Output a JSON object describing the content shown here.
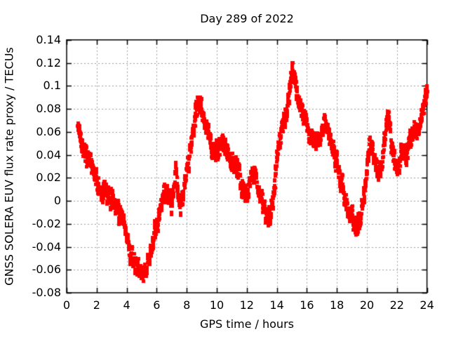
{
  "chart_data": {
    "type": "scatter",
    "title": "Day 289 of 2022",
    "xlabel": "GPS time / hours",
    "ylabel": "GNSS SOLERA EUV flux rate proxy / TECUs",
    "xlim": [
      0,
      24
    ],
    "ylim": [
      -0.08,
      0.14
    ],
    "xticks": [
      0,
      2,
      4,
      6,
      8,
      10,
      12,
      14,
      16,
      18,
      20,
      22,
      24
    ],
    "xtick_labels": [
      "0",
      "2",
      "4",
      "6",
      "8",
      "10",
      "12",
      "14",
      "16",
      "18",
      "20",
      "22",
      "24"
    ],
    "yticks": [
      0.14,
      0.12,
      0.1,
      0.08,
      0.06,
      0.04,
      0.02,
      0,
      -0.02,
      -0.04,
      -0.06,
      -0.08
    ],
    "ytick_labels": [
      "0.14",
      "0.12",
      "0.1",
      "0.08",
      "0.06",
      "0.04",
      "0.02",
      "0",
      "-0.02",
      "-0.04",
      "-0.06",
      "-0.08"
    ],
    "grid": true,
    "legend": "none",
    "marker": "filled-square",
    "marker_size_px": 5,
    "point_color": "#ff0000",
    "grid_color": "#9b9b9b",
    "axis_color": "#000000",
    "background_color": "#ffffff",
    "scatter_band_halfwidth": 0.009,
    "sample_step_hours": 0.01,
    "series": {
      "x_start": 0.72,
      "x_end": 24.0,
      "keypoints_x": [
        0.72,
        0.85,
        1.0,
        1.15,
        1.3,
        1.5,
        1.7,
        1.9,
        2.05,
        2.3,
        2.45,
        2.6,
        2.8,
        3.0,
        3.2,
        3.4,
        3.6,
        3.8,
        4.0,
        4.2,
        4.4,
        4.6,
        4.8,
        5.0,
        5.15,
        5.3,
        5.5,
        5.7,
        5.9,
        6.1,
        6.3,
        6.5,
        6.65,
        6.8,
        6.95,
        7.1,
        7.25,
        7.4,
        7.55,
        7.7,
        7.85,
        8.0,
        8.2,
        8.4,
        8.6,
        8.75,
        8.9,
        9.1,
        9.3,
        9.5,
        9.7,
        9.9,
        10.1,
        10.35,
        10.6,
        10.8,
        11.0,
        11.2,
        11.4,
        11.6,
        11.8,
        11.95,
        12.1,
        12.35,
        12.55,
        12.75,
        12.95,
        13.15,
        13.4,
        13.6,
        13.8,
        14.0,
        14.2,
        14.4,
        14.6,
        14.75,
        14.9,
        15.05,
        15.2,
        15.35,
        15.55,
        15.75,
        15.95,
        16.15,
        16.4,
        16.6,
        16.8,
        17.0,
        17.15,
        17.35,
        17.55,
        17.75,
        17.95,
        18.15,
        18.35,
        18.55,
        18.75,
        18.95,
        19.15,
        19.3,
        19.5,
        19.7,
        19.85,
        20.0,
        20.2,
        20.35,
        20.55,
        20.7,
        20.9,
        21.1,
        21.3,
        21.45,
        21.6,
        21.8,
        22.0,
        22.2,
        22.4,
        22.6,
        22.8,
        23.0,
        23.2,
        23.4,
        23.6,
        23.75,
        23.9,
        24.0
      ],
      "keypoints_y": [
        0.064,
        0.06,
        0.052,
        0.046,
        0.04,
        0.034,
        0.028,
        0.022,
        0.016,
        0.006,
        0.01,
        0.007,
        0.001,
        0.004,
        0.0,
        -0.006,
        -0.014,
        -0.024,
        -0.034,
        -0.044,
        -0.051,
        -0.055,
        -0.059,
        -0.062,
        -0.063,
        -0.057,
        -0.048,
        -0.04,
        -0.028,
        -0.016,
        -0.004,
        0.008,
        0.011,
        0.002,
        -0.007,
        0.008,
        0.026,
        0.012,
        -0.007,
        0.002,
        0.014,
        0.027,
        0.045,
        0.062,
        0.078,
        0.086,
        0.083,
        0.072,
        0.062,
        0.054,
        0.046,
        0.04,
        0.046,
        0.049,
        0.046,
        0.038,
        0.034,
        0.03,
        0.024,
        0.015,
        0.006,
        0.003,
        0.014,
        0.026,
        0.023,
        0.012,
        0.002,
        -0.008,
        -0.015,
        -0.006,
        0.012,
        0.038,
        0.055,
        0.065,
        0.076,
        0.088,
        0.103,
        0.119,
        0.106,
        0.093,
        0.082,
        0.074,
        0.067,
        0.06,
        0.054,
        0.05,
        0.056,
        0.063,
        0.067,
        0.063,
        0.052,
        0.044,
        0.034,
        0.024,
        0.013,
        0.003,
        -0.007,
        -0.014,
        -0.02,
        -0.022,
        -0.016,
        -0.004,
        0.012,
        0.032,
        0.05,
        0.045,
        0.032,
        0.021,
        0.032,
        0.048,
        0.068,
        0.078,
        0.048,
        0.033,
        0.024,
        0.036,
        0.046,
        0.041,
        0.049,
        0.056,
        0.063,
        0.066,
        0.072,
        0.08,
        0.089,
        0.096
      ]
    }
  }
}
